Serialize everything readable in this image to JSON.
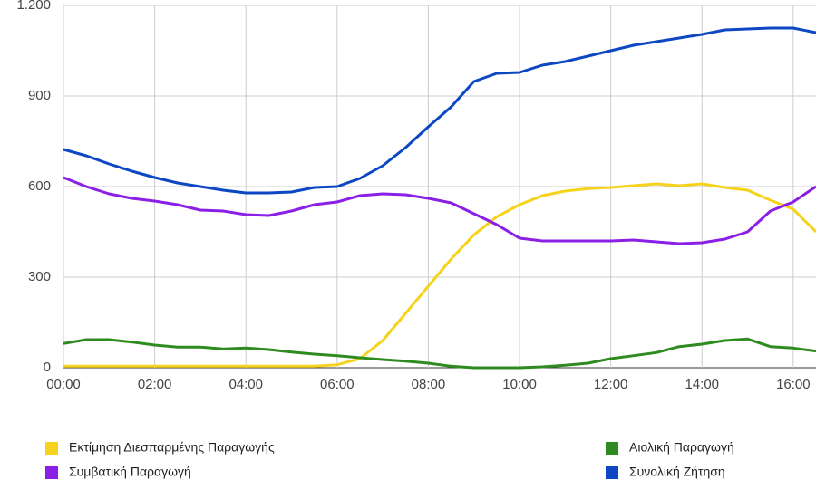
{
  "chart_data": {
    "type": "line",
    "x": [
      0,
      30,
      60,
      90,
      120,
      150,
      180,
      210,
      240,
      270,
      300,
      330,
      360,
      390,
      420,
      450,
      480,
      510,
      540,
      570,
      600,
      630,
      660,
      690,
      720,
      750,
      780,
      810,
      840,
      870,
      900,
      930,
      960,
      990
    ],
    "series": [
      {
        "name": "Εκτίμηση Διεσπαρμένης Παραγωγής",
        "color": "#f5d31c",
        "values": [
          5,
          5,
          5,
          5,
          5,
          5,
          5,
          5,
          5,
          5,
          5,
          5,
          10,
          30,
          90,
          180,
          270,
          360,
          440,
          500,
          540,
          570,
          585,
          593,
          597,
          603,
          609,
          603,
          609,
          597,
          588,
          555,
          525,
          450
        ]
      },
      {
        "name": "Συμβατική Παραγωγή",
        "color": "#8b1fe6",
        "values": [
          630,
          600,
          576,
          561,
          552,
          540,
          522,
          519,
          507,
          504,
          519,
          540,
          549,
          570,
          576,
          573,
          561,
          546,
          510,
          474,
          429,
          420,
          420,
          420,
          420,
          423,
          417,
          411,
          414,
          426,
          450,
          519,
          549,
          600
        ]
      },
      {
        "name": "Αιολική Παραγωγή",
        "color": "#2e8b1f",
        "values": [
          80,
          93,
          93,
          85,
          75,
          68,
          68,
          62,
          65,
          60,
          52,
          45,
          40,
          33,
          27,
          22,
          15,
          5,
          0,
          0,
          0,
          3,
          8,
          15,
          30,
          40,
          50,
          70,
          78,
          90,
          95,
          70,
          65,
          55
        ]
      },
      {
        "name": "Συνολική Ζήτηση",
        "color": "#0d47c4",
        "values": [
          723,
          702,
          675,
          651,
          630,
          612,
          600,
          588,
          579,
          579,
          582,
          597,
          600,
          627,
          669,
          729,
          798,
          864,
          948,
          975,
          978,
          1002,
          1014,
          1032,
          1050,
          1068,
          1080,
          1092,
          1104,
          1119,
          1122,
          1125,
          1125,
          1110
        ]
      }
    ],
    "xlim": [
      0,
      990
    ],
    "xticks": [
      {
        "value": 0,
        "label": "00:00"
      },
      {
        "value": 120,
        "label": "02:00"
      },
      {
        "value": 240,
        "label": "04:00"
      },
      {
        "value": 360,
        "label": "06:00"
      },
      {
        "value": 480,
        "label": "08:00"
      },
      {
        "value": 600,
        "label": "10:00"
      },
      {
        "value": 720,
        "label": "12:00"
      },
      {
        "value": 840,
        "label": "14:00"
      },
      {
        "value": 960,
        "label": "16:00"
      }
    ],
    "ylim": [
      0,
      1200
    ],
    "yticks": [
      0,
      300,
      600,
      900,
      {
        "value": 1200,
        "label": "1.200"
      }
    ],
    "grid": true
  }
}
